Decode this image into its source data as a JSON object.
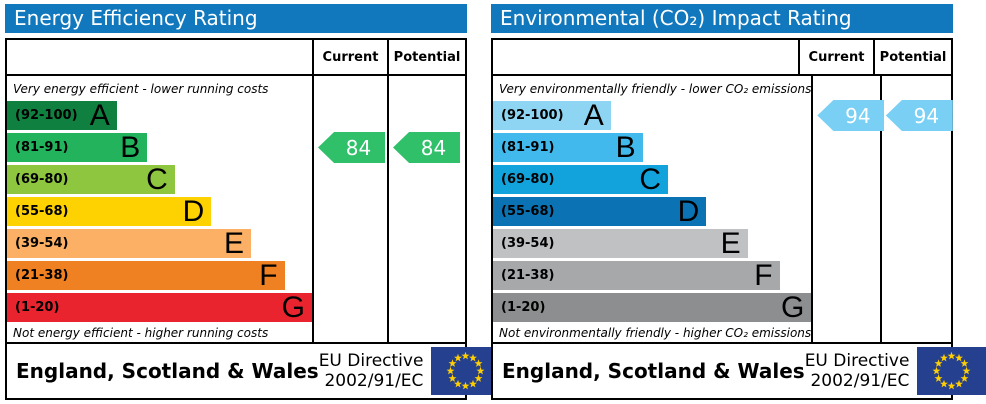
{
  "flag": {
    "bg": "#24408f",
    "star": "#ffce00"
  },
  "panels": [
    {
      "title": "Energy Efficiency Rating",
      "columns": {
        "current": "Current",
        "potential": "Potential"
      },
      "top_caption": "Very energy efficient - lower running costs",
      "bottom_caption": "Not energy efficient - higher running costs",
      "bands": [
        {
          "range": "(92-100)",
          "letter": "A",
          "color": "#0f8040",
          "width": 36
        },
        {
          "range": "(81-91)",
          "letter": "B",
          "color": "#22b35c",
          "width": 46
        },
        {
          "range": "(69-80)",
          "letter": "C",
          "color": "#8ec640",
          "width": 55
        },
        {
          "range": "(55-68)",
          "letter": "D",
          "color": "#fdd200",
          "width": 67
        },
        {
          "range": "(39-54)",
          "letter": "E",
          "color": "#fbb065",
          "width": 80
        },
        {
          "range": "(21-38)",
          "letter": "F",
          "color": "#ef8123",
          "width": 91
        },
        {
          "range": "(1-20)",
          "letter": "G",
          "color": "#e9242e",
          "width": 100
        }
      ],
      "current": {
        "value": "84",
        "band_index": 1,
        "color": "#30c06a"
      },
      "potential": {
        "value": "84",
        "band_index": 1,
        "color": "#30c06a"
      },
      "footer": {
        "region": "England, Scotland & Wales",
        "directive_line1": "EU Directive",
        "directive_line2": "2002/91/EC"
      }
    },
    {
      "title": "Environmental (CO₂) Impact Rating",
      "columns": {
        "current": "Current",
        "potential": "Potential"
      },
      "top_caption": "Very environmentally friendly - lower CO₂ emissions",
      "bottom_caption": "Not environmentally friendly - higher CO₂ emissions",
      "bands": [
        {
          "range": "(92-100)",
          "letter": "A",
          "color": "#8ed4f3",
          "width": 37
        },
        {
          "range": "(81-91)",
          "letter": "B",
          "color": "#42b9ed",
          "width": 47
        },
        {
          "range": "(69-80)",
          "letter": "C",
          "color": "#12a3dd",
          "width": 55
        },
        {
          "range": "(55-68)",
          "letter": "D",
          "color": "#0b73b3",
          "width": 67
        },
        {
          "range": "(39-54)",
          "letter": "E",
          "color": "#c0c1c3",
          "width": 80
        },
        {
          "range": "(21-38)",
          "letter": "F",
          "color": "#a6a8aa",
          "width": 90
        },
        {
          "range": "(1-20)",
          "letter": "G",
          "color": "#8c8e90",
          "width": 100
        }
      ],
      "current": {
        "value": "94",
        "band_index": 0,
        "color": "#79cff4"
      },
      "potential": {
        "value": "94",
        "band_index": 0,
        "color": "#79cff4"
      },
      "footer": {
        "region": "England, Scotland & Wales",
        "directive_line1": "EU Directive",
        "directive_line2": "2002/91/EC"
      }
    }
  ],
  "chart_data": [
    {
      "type": "bar",
      "title": "Energy Efficiency Rating",
      "categories": [
        "A (92-100)",
        "B (81-91)",
        "C (69-80)",
        "D (55-68)",
        "E (39-54)",
        "F (21-38)",
        "G (1-20)"
      ],
      "band_widths_pct": [
        36,
        46,
        55,
        67,
        80,
        91,
        100
      ],
      "band_colors": [
        "#0f8040",
        "#22b35c",
        "#8ec640",
        "#fdd200",
        "#fbb065",
        "#ef8123",
        "#e9242e"
      ],
      "series": [
        {
          "name": "Current",
          "values": [
            84
          ],
          "band": "B"
        },
        {
          "name": "Potential",
          "values": [
            84
          ],
          "band": "B"
        }
      ],
      "annotations": [
        "Very energy efficient - lower running costs",
        "Not energy efficient - higher running costs"
      ],
      "footer": "England, Scotland & Wales — EU Directive 2002/91/EC",
      "value_range": [
        1,
        100
      ]
    },
    {
      "type": "bar",
      "title": "Environmental (CO₂) Impact Rating",
      "categories": [
        "A (92-100)",
        "B (81-91)",
        "C (69-80)",
        "D (55-68)",
        "E (39-54)",
        "F (21-38)",
        "G (1-20)"
      ],
      "band_widths_pct": [
        37,
        47,
        55,
        67,
        80,
        90,
        100
      ],
      "band_colors": [
        "#8ed4f3",
        "#42b9ed",
        "#12a3dd",
        "#0b73b3",
        "#c0c1c3",
        "#a6a8aa",
        "#8c8e90"
      ],
      "series": [
        {
          "name": "Current",
          "values": [
            94
          ],
          "band": "A"
        },
        {
          "name": "Potential",
          "values": [
            94
          ],
          "band": "A"
        }
      ],
      "annotations": [
        "Very environmentally friendly - lower CO₂ emissions",
        "Not environmentally friendly - higher CO₂ emissions"
      ],
      "footer": "England, Scotland & Wales — EU Directive 2002/91/EC",
      "value_range": [
        1,
        100
      ]
    }
  ]
}
